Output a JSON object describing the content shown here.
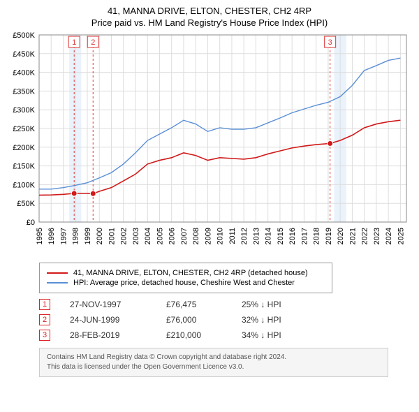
{
  "title_line1": "41, MANNA DRIVE, ELTON, CHESTER, CH2 4RP",
  "title_line2": "Price paid vs. HM Land Registry's House Price Index (HPI)",
  "chart": {
    "type": "line",
    "background_color": "#ffffff",
    "grid_color": "#dddddd",
    "axis_color": "#888888",
    "highlight_band_color": "#eaf2fb",
    "sale_dash_color": "#d33",
    "xlim": [
      1995,
      2025.5
    ],
    "ylim": [
      0,
      500000
    ],
    "ytick_step": 50000,
    "ytick_labels": [
      "£0",
      "£50K",
      "£100K",
      "£150K",
      "£200K",
      "£250K",
      "£300K",
      "£350K",
      "£400K",
      "£450K",
      "£500K"
    ],
    "xtick_step": 1,
    "xtick_labels": [
      "1995",
      "1996",
      "1997",
      "1998",
      "1999",
      "2000",
      "2001",
      "2002",
      "2003",
      "2004",
      "2005",
      "2006",
      "2007",
      "2008",
      "2009",
      "2010",
      "2011",
      "2012",
      "2013",
      "2014",
      "2015",
      "2016",
      "2017",
      "2018",
      "2019",
      "2020",
      "2021",
      "2022",
      "2023",
      "2024",
      "2025"
    ],
    "highlight_bands": [
      [
        1997.5,
        1998.5
      ],
      [
        2019.5,
        2020.5
      ]
    ],
    "series": [
      {
        "name": "property",
        "color": "#d11919",
        "line_width": 1.6,
        "points": [
          [
            1995,
            72000
          ],
          [
            1996,
            72500
          ],
          [
            1997,
            74000
          ],
          [
            1997.9,
            76475
          ],
          [
            1999,
            76500
          ],
          [
            1999.5,
            76000
          ],
          [
            2000,
            82000
          ],
          [
            2001,
            92000
          ],
          [
            2002,
            110000
          ],
          [
            2003,
            128000
          ],
          [
            2004,
            155000
          ],
          [
            2005,
            165000
          ],
          [
            2006,
            172000
          ],
          [
            2007,
            185000
          ],
          [
            2008,
            178000
          ],
          [
            2009,
            165000
          ],
          [
            2010,
            172000
          ],
          [
            2011,
            170000
          ],
          [
            2012,
            168000
          ],
          [
            2013,
            172000
          ],
          [
            2014,
            182000
          ],
          [
            2015,
            190000
          ],
          [
            2016,
            198000
          ],
          [
            2017,
            203000
          ],
          [
            2018,
            207000
          ],
          [
            2019.16,
            210000
          ],
          [
            2020,
            218000
          ],
          [
            2021,
            232000
          ],
          [
            2022,
            252000
          ],
          [
            2023,
            262000
          ],
          [
            2024,
            268000
          ],
          [
            2025,
            272000
          ]
        ]
      },
      {
        "name": "hpi",
        "color": "#5a8fd6",
        "line_width": 1.4,
        "points": [
          [
            1995,
            88000
          ],
          [
            1996,
            88000
          ],
          [
            1997,
            92000
          ],
          [
            1998,
            98000
          ],
          [
            1999,
            105000
          ],
          [
            2000,
            118000
          ],
          [
            2001,
            132000
          ],
          [
            2002,
            155000
          ],
          [
            2003,
            185000
          ],
          [
            2004,
            218000
          ],
          [
            2005,
            235000
          ],
          [
            2006,
            252000
          ],
          [
            2007,
            272000
          ],
          [
            2008,
            262000
          ],
          [
            2009,
            242000
          ],
          [
            2010,
            252000
          ],
          [
            2011,
            248000
          ],
          [
            2012,
            248000
          ],
          [
            2013,
            252000
          ],
          [
            2014,
            265000
          ],
          [
            2015,
            278000
          ],
          [
            2016,
            292000
          ],
          [
            2017,
            302000
          ],
          [
            2018,
            312000
          ],
          [
            2019,
            320000
          ],
          [
            2020,
            335000
          ],
          [
            2021,
            365000
          ],
          [
            2022,
            405000
          ],
          [
            2023,
            418000
          ],
          [
            2024,
            432000
          ],
          [
            2025,
            438000
          ]
        ]
      }
    ],
    "sale_markers": [
      {
        "label": "1",
        "x": 1997.91
      },
      {
        "label": "2",
        "x": 1999.48
      },
      {
        "label": "3",
        "x": 2019.16
      }
    ],
    "sale_points": [
      {
        "x": 1997.91,
        "y": 76475,
        "color": "#d11919"
      },
      {
        "x": 1999.48,
        "y": 76000,
        "color": "#d11919"
      },
      {
        "x": 2019.16,
        "y": 210000,
        "color": "#d11919"
      }
    ]
  },
  "legend": {
    "items": [
      {
        "color": "#d11919",
        "text": "41, MANNA DRIVE, ELTON, CHESTER, CH2 4RP (detached house)"
      },
      {
        "color": "#5a8fd6",
        "text": "HPI: Average price, detached house, Cheshire West and Chester"
      }
    ]
  },
  "sales": [
    {
      "label": "1",
      "date": "27-NOV-1997",
      "price": "£76,475",
      "diff": "25% ↓ HPI"
    },
    {
      "label": "2",
      "date": "24-JUN-1999",
      "price": "£76,000",
      "diff": "32% ↓ HPI"
    },
    {
      "label": "3",
      "date": "28-FEB-2019",
      "price": "£210,000",
      "diff": "34% ↓ HPI"
    }
  ],
  "footnote_line1": "Contains HM Land Registry data © Crown copyright and database right 2024.",
  "footnote_line2": "This data is licensed under the Open Government Licence v3.0."
}
